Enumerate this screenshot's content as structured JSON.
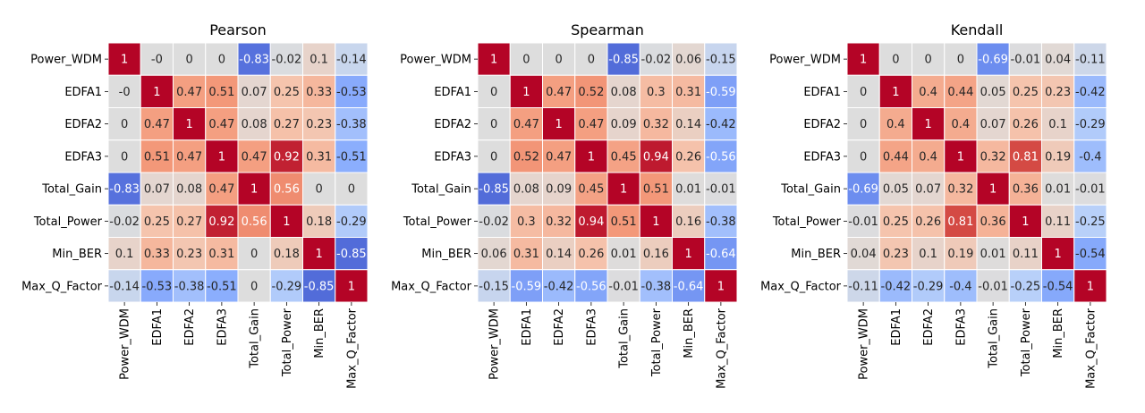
{
  "chart_data": [
    {
      "type": "heatmap",
      "title": "Pearson",
      "categories": [
        "Power_WDM",
        "EDFA1",
        "EDFA2",
        "EDFA3",
        "Total_Gain",
        "Total_Power",
        "Min_BER",
        "Max_Q_Factor"
      ],
      "value_labels": [
        [
          "1",
          "-0",
          "0",
          "0",
          "-0.83",
          "-0.02",
          "0.1",
          "-0.14"
        ],
        [
          "-0",
          "1",
          "0.47",
          "0.51",
          "0.07",
          "0.25",
          "0.33",
          "-0.53"
        ],
        [
          "0",
          "0.47",
          "1",
          "0.47",
          "0.08",
          "0.27",
          "0.23",
          "-0.38"
        ],
        [
          "0",
          "0.51",
          "0.47",
          "1",
          "0.47",
          "0.92",
          "0.31",
          "-0.51"
        ],
        [
          "-0.83",
          "0.07",
          "0.08",
          "0.47",
          "1",
          "0.56",
          "0",
          "0"
        ],
        [
          "-0.02",
          "0.25",
          "0.27",
          "0.92",
          "0.56",
          "1",
          "0.18",
          "-0.29"
        ],
        [
          "0.1",
          "0.33",
          "0.23",
          "0.31",
          "0",
          "0.18",
          "1",
          "-0.85"
        ],
        [
          "-0.14",
          "-0.53",
          "-0.38",
          "-0.51",
          "0",
          "-0.29",
          "-0.85",
          "1"
        ]
      ],
      "color_scale": "coolwarm",
      "vlim": [
        -1,
        1
      ]
    },
    {
      "type": "heatmap",
      "title": "Spearman",
      "categories": [
        "Power_WDM",
        "EDFA1",
        "EDFA2",
        "EDFA3",
        "Total_Gain",
        "Total_Power",
        "Min_BER",
        "Max_Q_Factor"
      ],
      "value_labels": [
        [
          "1",
          "0",
          "0",
          "0",
          "-0.85",
          "-0.02",
          "0.06",
          "-0.15"
        ],
        [
          "0",
          "1",
          "0.47",
          "0.52",
          "0.08",
          "0.3",
          "0.31",
          "-0.59"
        ],
        [
          "0",
          "0.47",
          "1",
          "0.47",
          "0.09",
          "0.32",
          "0.14",
          "-0.42"
        ],
        [
          "0",
          "0.52",
          "0.47",
          "1",
          "0.45",
          "0.94",
          "0.26",
          "-0.56"
        ],
        [
          "-0.85",
          "0.08",
          "0.09",
          "0.45",
          "1",
          "0.51",
          "0.01",
          "-0.01"
        ],
        [
          "-0.02",
          "0.3",
          "0.32",
          "0.94",
          "0.51",
          "1",
          "0.16",
          "-0.38"
        ],
        [
          "0.06",
          "0.31",
          "0.14",
          "0.26",
          "0.01",
          "0.16",
          "1",
          "-0.64"
        ],
        [
          "-0.15",
          "-0.59",
          "-0.42",
          "-0.56",
          "-0.01",
          "-0.38",
          "-0.64",
          "1"
        ]
      ],
      "color_scale": "coolwarm",
      "vlim": [
        -1,
        1
      ]
    },
    {
      "type": "heatmap",
      "title": "Kendall",
      "categories": [
        "Power_WDM",
        "EDFA1",
        "EDFA2",
        "EDFA3",
        "Total_Gain",
        "Total_Power",
        "Min_BER",
        "Max_Q_Factor"
      ],
      "value_labels": [
        [
          "1",
          "0",
          "0",
          "0",
          "-0.69",
          "-0.01",
          "0.04",
          "-0.11"
        ],
        [
          "0",
          "1",
          "0.4",
          "0.44",
          "0.05",
          "0.25",
          "0.23",
          "-0.42"
        ],
        [
          "0",
          "0.4",
          "1",
          "0.4",
          "0.07",
          "0.26",
          "0.1",
          "-0.29"
        ],
        [
          "0",
          "0.44",
          "0.4",
          "1",
          "0.32",
          "0.81",
          "0.19",
          "-0.4"
        ],
        [
          "-0.69",
          "0.05",
          "0.07",
          "0.32",
          "1",
          "0.36",
          "0.01",
          "-0.01"
        ],
        [
          "-0.01",
          "0.25",
          "0.26",
          "0.81",
          "0.36",
          "1",
          "0.11",
          "-0.25"
        ],
        [
          "0.04",
          "0.23",
          "0.1",
          "0.19",
          "0.01",
          "0.11",
          "1",
          "-0.54"
        ],
        [
          "-0.11",
          "-0.42",
          "-0.29",
          "-0.4",
          "-0.01",
          "-0.25",
          "-0.54",
          "1"
        ]
      ],
      "color_scale": "coolwarm",
      "vlim": [
        -1,
        1
      ]
    }
  ]
}
